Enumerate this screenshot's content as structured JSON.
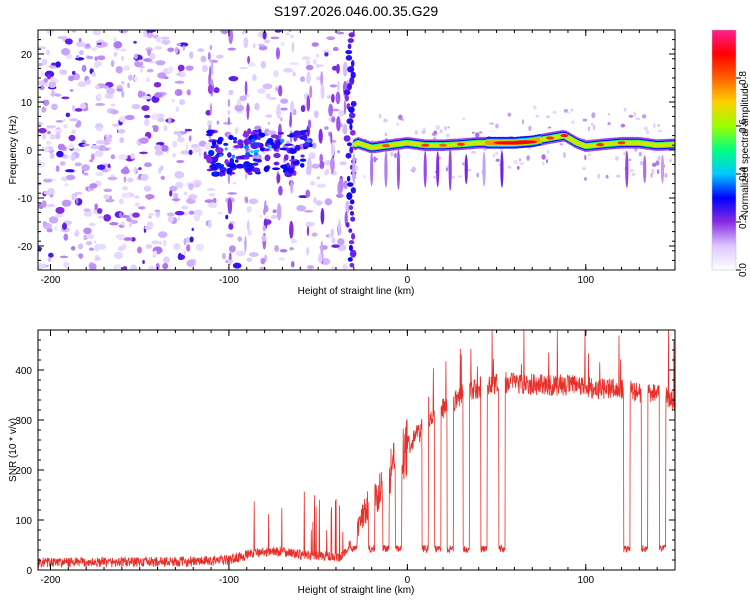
{
  "chart_data": [
    {
      "type": "heatmap",
      "title": "S197.2026.046.00.35.G29",
      "xlabel": "Height of straight line (km)",
      "ylabel": "Frequency (Hz)",
      "xlim": [
        -207,
        150
      ],
      "ylim": [
        -25,
        25
      ],
      "xticks": [
        -200,
        -100,
        0,
        100
      ],
      "yticks": [
        -20,
        -10,
        0,
        10,
        20
      ],
      "colorbar": {
        "label": "Normalized spectral amplitude",
        "range": [
          0.0,
          1.0
        ],
        "ticks": [
          0.0,
          0.2,
          0.4,
          0.6,
          0.8
        ],
        "tick_labels": [
          "0.0",
          "0.2",
          "0.4",
          "0.6",
          "0.8"
        ],
        "colors": [
          "#ffffff",
          "#dcc8ff",
          "#8a2be2",
          "#0000ff",
          "#00c8ff",
          "#00ff80",
          "#9cff00",
          "#ffd000",
          "#ff6000",
          "#ff0000",
          "#ff2090"
        ]
      },
      "description_points": {
        "noise_region_x": [
          -207,
          -35
        ],
        "signal_onset_x": -30,
        "tone_frequency_hz": [
          [
            -28,
            1.5
          ],
          [
            -20,
            0.5
          ],
          [
            -10,
            1.0
          ],
          [
            0,
            1.5
          ],
          [
            10,
            1.0
          ],
          [
            20,
            1.0
          ],
          [
            30,
            1.2
          ],
          [
            40,
            1.5
          ],
          [
            50,
            1.5
          ],
          [
            60,
            1.5
          ],
          [
            70,
            1.8
          ],
          [
            80,
            2.5
          ],
          [
            88,
            3.0
          ],
          [
            95,
            1.5
          ],
          [
            100,
            0.8
          ],
          [
            110,
            1.2
          ],
          [
            120,
            1.5
          ],
          [
            130,
            1.5
          ],
          [
            140,
            1.0
          ],
          [
            150,
            1.2
          ]
        ]
      }
    },
    {
      "type": "line",
      "xlabel": "Height of straight line (km)",
      "ylabel": "SNR (10 * v/v)",
      "xlim": [
        -207,
        150
      ],
      "ylim": [
        0,
        480
      ],
      "xticks": [
        -200,
        -100,
        0,
        100
      ],
      "yticks": [
        0,
        100,
        200,
        300,
        400
      ],
      "series": [
        {
          "name": "SNR",
          "color": "#e8302a",
          "x": [
            -207,
            -180,
            -150,
            -120,
            -100,
            -85,
            -70,
            -60,
            -45,
            -38,
            -30,
            -25,
            -20,
            -15,
            -10,
            -5,
            0,
            5,
            10,
            15,
            20,
            25,
            30,
            40,
            50,
            60,
            70,
            80,
            90,
            100,
            110,
            120,
            130,
            140,
            150
          ],
          "y": [
            15,
            15,
            16,
            17,
            20,
            35,
            38,
            30,
            28,
            22,
            60,
            110,
            140,
            160,
            195,
            215,
            250,
            270,
            290,
            300,
            320,
            335,
            350,
            365,
            375,
            375,
            372,
            370,
            370,
            365,
            362,
            360,
            355,
            350,
            340
          ]
        }
      ],
      "dropouts_x": [
        -30,
        -20,
        -12,
        -5,
        10,
        17,
        24,
        33,
        43,
        53,
        123,
        133,
        143
      ],
      "dropout_min_snr": 35,
      "max_snr": 480
    }
  ]
}
